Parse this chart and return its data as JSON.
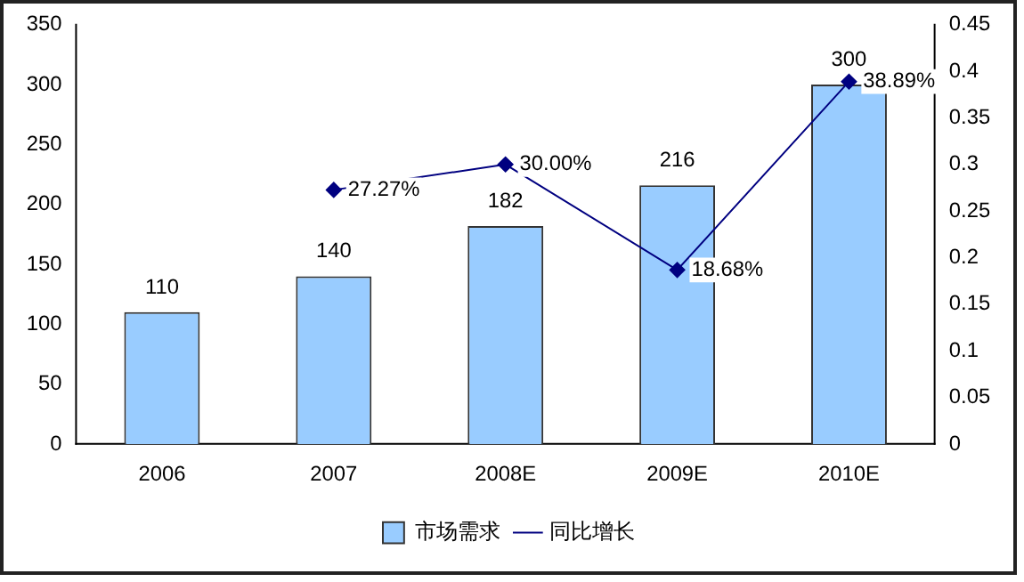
{
  "chart_data": {
    "type": "bar",
    "categories": [
      "2006",
      "2007",
      "2008E",
      "2009E",
      "2010E"
    ],
    "series": [
      {
        "name": "市场需求",
        "color": "#99ccff",
        "values": [
          110,
          140,
          182,
          216,
          300
        ],
        "value_labels": [
          "110",
          "140",
          "182",
          "216",
          "300"
        ]
      },
      {
        "name": "同比增长",
        "type": "line",
        "axis": "y2",
        "color": "#000080",
        "values": [
          null,
          0.2727,
          0.3,
          0.1868,
          0.3889
        ],
        "value_labels": [
          null,
          "27.27%",
          "30.00%",
          "18.68%",
          "38.89%"
        ]
      }
    ],
    "ylim": [
      0,
      350
    ],
    "yticks": [
      0,
      50,
      100,
      150,
      200,
      250,
      300,
      350
    ],
    "y2lim": [
      0,
      0.45
    ],
    "y2ticks": [
      0,
      0.05,
      0.1,
      0.15,
      0.2,
      0.25,
      0.3,
      0.35,
      0.4,
      0.45
    ],
    "grid": false,
    "legend": "bottom",
    "marker": "diamond",
    "line_style": "solid"
  }
}
